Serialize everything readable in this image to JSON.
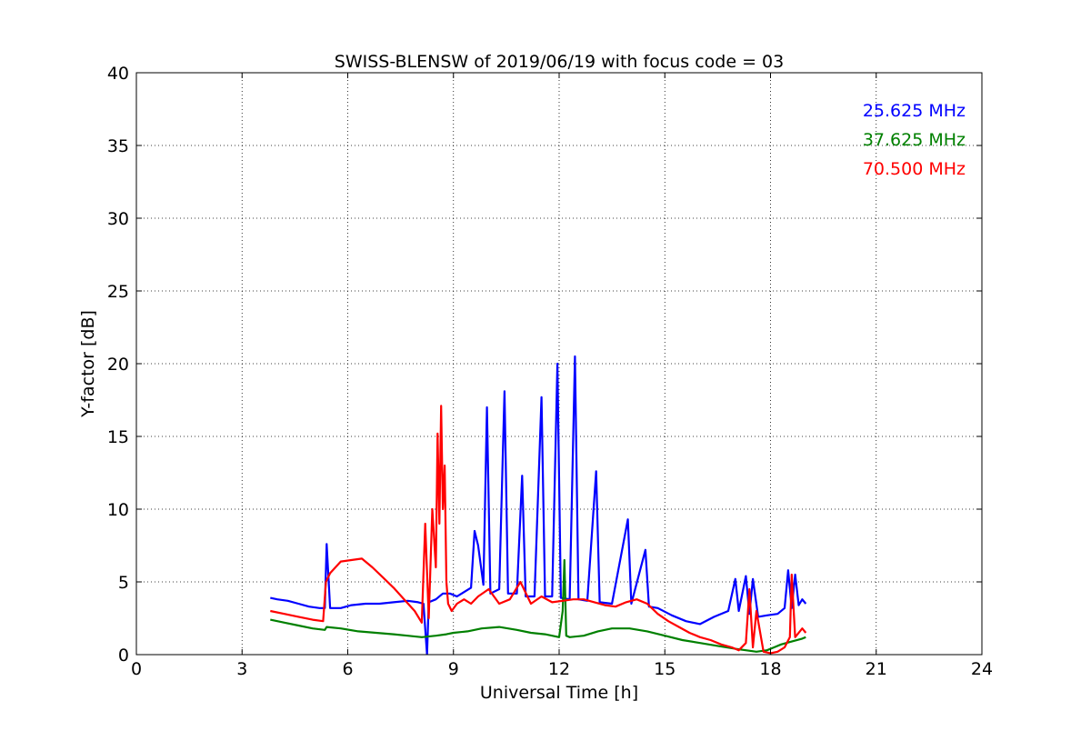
{
  "chart_data": {
    "type": "line",
    "title": "SWISS-BLENSW of 2019/06/19 with focus code = 03",
    "xlabel": "Universal Time [h]",
    "ylabel": "Y-factor [dB]",
    "xlim": [
      0,
      24
    ],
    "ylim": [
      0,
      40
    ],
    "xticks": [
      0,
      3,
      6,
      9,
      12,
      15,
      18,
      21,
      24
    ],
    "yticks": [
      0,
      5,
      10,
      15,
      20,
      25,
      30,
      35,
      40
    ],
    "grid": true,
    "legend_position": "top-right",
    "series": [
      {
        "name": "25.625 MHz",
        "color": "#0000ff",
        "x": [
          3.8,
          4.0,
          4.3,
          4.6,
          4.9,
          5.2,
          5.35,
          5.4,
          5.5,
          5.8,
          6.1,
          6.5,
          6.9,
          7.3,
          7.7,
          8.0,
          8.15,
          8.25,
          8.3,
          8.5,
          8.7,
          8.9,
          9.1,
          9.3,
          9.5,
          9.6,
          9.7,
          9.85,
          9.95,
          10.05,
          10.3,
          10.45,
          10.55,
          10.8,
          10.95,
          11.05,
          11.3,
          11.5,
          11.6,
          11.8,
          11.95,
          12.05,
          12.3,
          12.45,
          12.55,
          12.8,
          13.05,
          13.15,
          13.5,
          13.95,
          14.05,
          14.45,
          14.55,
          14.8,
          15.2,
          15.6,
          16.0,
          16.4,
          16.8,
          17.0,
          17.1,
          17.3,
          17.4,
          17.5,
          17.65,
          17.9,
          18.2,
          18.4,
          18.5,
          18.6,
          18.7,
          18.8,
          18.9,
          19.0
        ],
        "values": [
          3.9,
          3.8,
          3.7,
          3.5,
          3.3,
          3.2,
          3.2,
          7.6,
          3.2,
          3.2,
          3.4,
          3.5,
          3.5,
          3.6,
          3.7,
          3.6,
          3.5,
          0.0,
          3.6,
          3.8,
          4.2,
          4.2,
          4.0,
          4.3,
          4.6,
          8.5,
          7.5,
          4.8,
          17.0,
          4.2,
          4.5,
          18.1,
          4.2,
          4.2,
          12.3,
          4.0,
          4.0,
          17.7,
          4.0,
          4.0,
          20.0,
          3.9,
          3.8,
          20.5,
          3.8,
          3.7,
          12.6,
          3.6,
          3.5,
          9.3,
          3.5,
          7.2,
          3.3,
          3.2,
          2.7,
          2.3,
          2.1,
          2.6,
          3.0,
          5.2,
          3.0,
          5.4,
          2.8,
          5.2,
          2.6,
          2.7,
          2.8,
          3.2,
          5.8,
          3.2,
          5.5,
          3.4,
          3.8,
          3.5
        ]
      },
      {
        "name": "37.625 MHz",
        "color": "#008000",
        "x": [
          3.8,
          4.2,
          4.6,
          5.0,
          5.35,
          5.4,
          5.8,
          6.3,
          6.8,
          7.3,
          7.7,
          8.1,
          8.5,
          8.8,
          9.0,
          9.4,
          9.8,
          10.3,
          10.8,
          11.2,
          11.6,
          12.0,
          12.1,
          12.15,
          12.2,
          12.3,
          12.7,
          13.1,
          13.5,
          14.0,
          14.5,
          15.0,
          15.5,
          16.0,
          16.5,
          17.0,
          17.3,
          17.6,
          17.9,
          18.1,
          18.3,
          18.6,
          18.9,
          19.0
        ],
        "values": [
          2.4,
          2.2,
          2.0,
          1.8,
          1.7,
          1.9,
          1.8,
          1.6,
          1.5,
          1.4,
          1.3,
          1.2,
          1.3,
          1.4,
          1.5,
          1.6,
          1.8,
          1.9,
          1.7,
          1.5,
          1.4,
          1.2,
          3.0,
          6.5,
          1.3,
          1.2,
          1.3,
          1.6,
          1.8,
          1.8,
          1.6,
          1.3,
          1.0,
          0.8,
          0.6,
          0.4,
          0.3,
          0.2,
          0.3,
          0.5,
          0.7,
          0.9,
          1.1,
          1.2
        ]
      },
      {
        "name": "70.500 MHz",
        "color": "#ff0000",
        "x": [
          3.8,
          4.2,
          4.6,
          5.0,
          5.3,
          5.38,
          5.5,
          5.8,
          6.1,
          6.4,
          6.7,
          7.0,
          7.3,
          7.6,
          7.9,
          8.1,
          8.2,
          8.3,
          8.4,
          8.5,
          8.55,
          8.6,
          8.65,
          8.7,
          8.75,
          8.8,
          8.85,
          8.95,
          9.1,
          9.3,
          9.5,
          9.7,
          10.0,
          10.3,
          10.6,
          10.9,
          11.2,
          11.5,
          11.8,
          12.1,
          12.4,
          12.7,
          13.0,
          13.3,
          13.6,
          13.9,
          14.2,
          14.5,
          14.8,
          15.1,
          15.4,
          15.7,
          16.0,
          16.3,
          16.6,
          16.9,
          17.1,
          17.3,
          17.4,
          17.5,
          17.6,
          17.8,
          18.0,
          18.2,
          18.4,
          18.55,
          18.6,
          18.7,
          18.9,
          19.0
        ],
        "values": [
          3.0,
          2.8,
          2.6,
          2.4,
          2.3,
          5.0,
          5.6,
          6.4,
          6.5,
          6.6,
          6.0,
          5.3,
          4.6,
          3.8,
          3.0,
          2.2,
          9.0,
          2.5,
          10.0,
          6.0,
          15.2,
          9.0,
          17.1,
          10.0,
          13.0,
          5.0,
          3.5,
          3.0,
          3.5,
          3.8,
          3.5,
          4.0,
          4.5,
          3.5,
          3.8,
          5.0,
          3.5,
          4.0,
          3.6,
          3.7,
          3.8,
          3.8,
          3.6,
          3.4,
          3.3,
          3.6,
          3.8,
          3.5,
          2.8,
          2.3,
          1.9,
          1.5,
          1.2,
          1.0,
          0.7,
          0.5,
          0.3,
          0.8,
          4.5,
          0.5,
          3.0,
          0.2,
          0.1,
          0.2,
          0.5,
          1.2,
          5.5,
          1.2,
          1.8,
          1.5
        ]
      }
    ]
  }
}
